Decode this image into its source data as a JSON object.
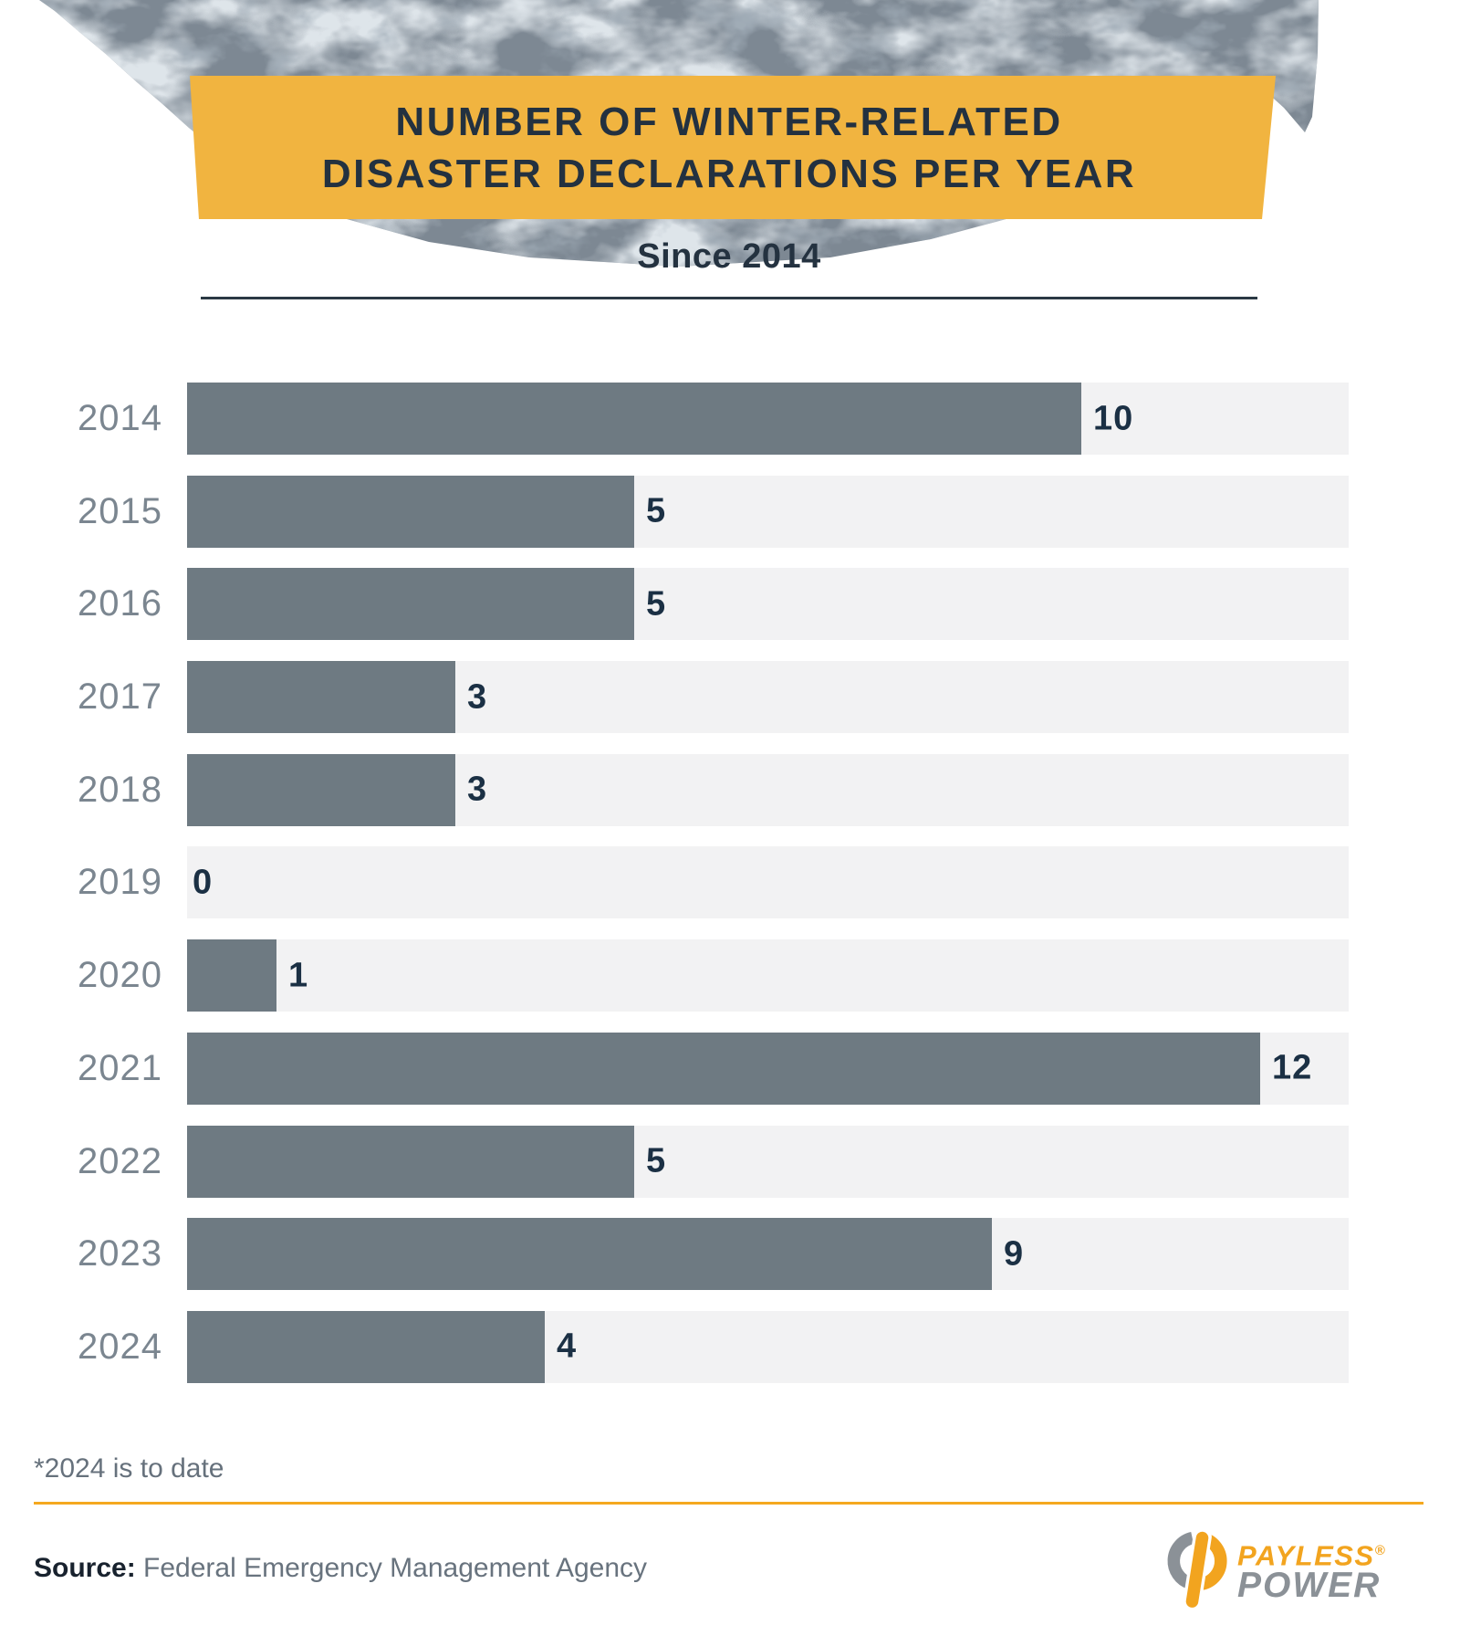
{
  "header": {
    "title_line1": "NUMBER OF WINTER-RELATED",
    "title_line2": "DISASTER DECLARATIONS PER YEAR",
    "subtitle": "Since 2014"
  },
  "chart_data": {
    "type": "bar",
    "orientation": "horizontal",
    "title": "Number of Winter-Related Disaster Declarations Per Year",
    "subtitle": "Since 2014",
    "categories": [
      "2014",
      "2015",
      "2016",
      "2017",
      "2018",
      "2019",
      "2020",
      "2021",
      "2022",
      "2023",
      "2024"
    ],
    "values": [
      10,
      5,
      5,
      3,
      3,
      0,
      1,
      12,
      5,
      9,
      4
    ],
    "value_axis_max": 13,
    "grid": false,
    "legend": "none",
    "bar_color": "#6e7a82",
    "track_color": "#f2f2f3",
    "category_label_color": "#7b8690",
    "value_label_color": "#1b3044",
    "footnote": "*2024 is to date"
  },
  "footer": {
    "footnote": "*2024 is to date",
    "source_label": "Source:",
    "source_text": " Federal Emergency Management Agency",
    "logo": {
      "brand_line1": "PAYLESS",
      "brand_registered": "®",
      "brand_line2": "POWER",
      "orange": "#f2a41f",
      "gray": "#8b9197"
    }
  },
  "colors": {
    "banner_bg": "#f1b440",
    "title_text": "#233140",
    "subtitle_text": "#243240",
    "divider": "#2b3944",
    "accent_rule": "#f5a81f",
    "footnote_text": "#66717c",
    "source_label_text": "#18222e",
    "source_text": "#68737e",
    "photo_base": "#7d8893"
  }
}
